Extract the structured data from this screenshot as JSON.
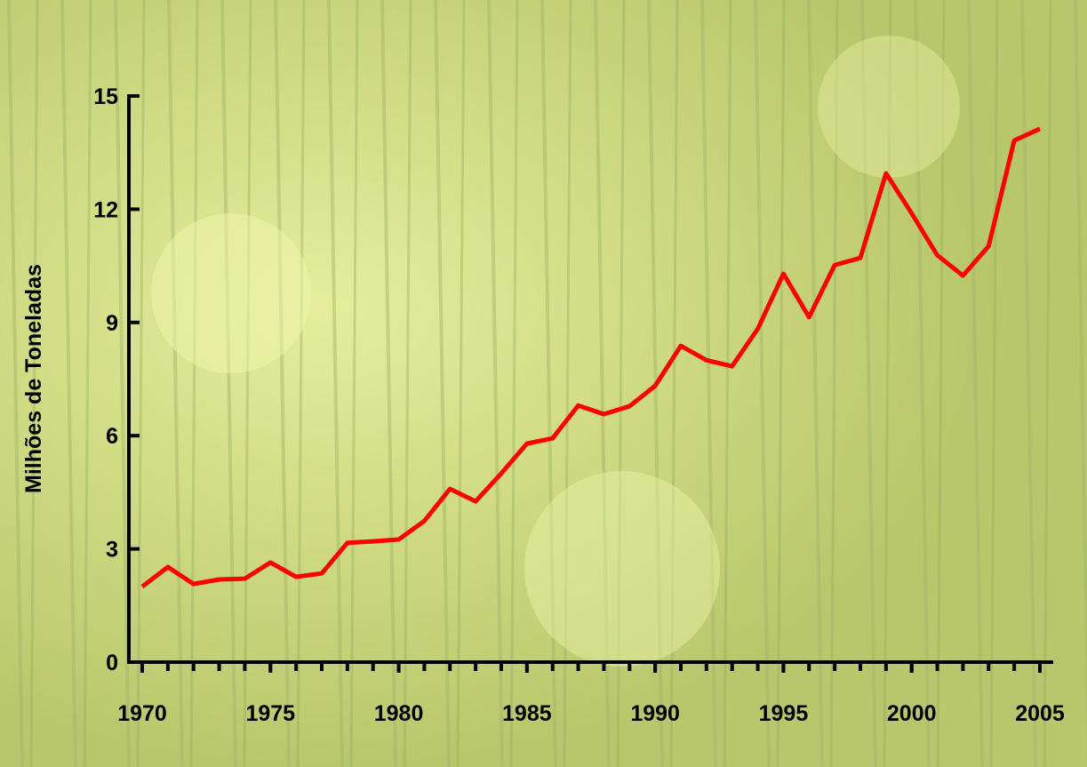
{
  "chart_data": {
    "type": "line",
    "y_label": "Milhões de Toneladas",
    "x": [
      1970,
      1971,
      1972,
      1973,
      1974,
      1975,
      1976,
      1977,
      1978,
      1979,
      1980,
      1981,
      1982,
      1983,
      1984,
      1985,
      1986,
      1987,
      1988,
      1989,
      1990,
      1991,
      1992,
      1993,
      1994,
      1995,
      1996,
      1997,
      1998,
      1999,
      2000,
      2001,
      2002,
      2003,
      2004,
      2005
    ],
    "series": [
      {
        "color": "#ff0000",
        "values": [
          2.0,
          2.52,
          2.07,
          2.19,
          2.21,
          2.64,
          2.26,
          2.35,
          3.16,
          3.2,
          3.25,
          3.74,
          4.59,
          4.26,
          5.0,
          5.79,
          5.93,
          6.8,
          6.57,
          6.78,
          7.32,
          8.38,
          8.0,
          7.84,
          8.83,
          10.29,
          9.14,
          10.52,
          10.71,
          12.95,
          11.89,
          10.78,
          10.24,
          11.02,
          13.82,
          14.13
        ]
      }
    ],
    "xlim": [
      1970,
      2005
    ],
    "xticks": [
      1970,
      1975,
      1980,
      1985,
      1990,
      1995,
      2000,
      2005
    ],
    "ylim": [
      0,
      15
    ],
    "yticks": [
      0,
      3,
      6,
      9,
      12,
      15
    ]
  }
}
